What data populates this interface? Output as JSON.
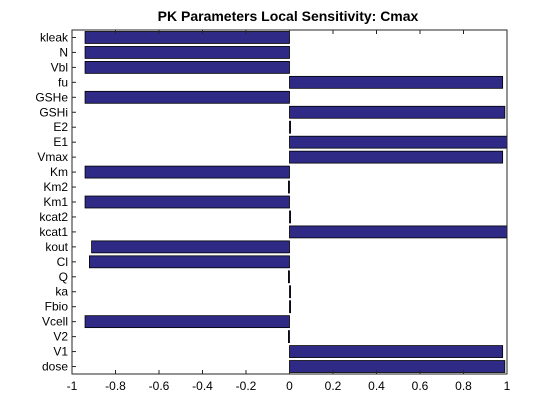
{
  "chart_data": {
    "type": "bar",
    "orientation": "horizontal",
    "title": "PK Parameters Local Sensitivity: Cmax",
    "xlabel": "",
    "ylabel": "",
    "xlim": [
      -1,
      1
    ],
    "xticks": [
      "-1",
      "-0.8",
      "-0.6",
      "-0.4",
      "-0.2",
      "0",
      "0.2",
      "0.4",
      "0.6",
      "0.8",
      "1"
    ],
    "categories": [
      "kleak",
      "N",
      "Vbl",
      "fu",
      "GSHe",
      "GSHi",
      "E2",
      "E1",
      "Vmax",
      "Km",
      "Km2",
      "Km1",
      "kcat2",
      "kcat1",
      "kout",
      "Cl",
      "Q",
      "ka",
      "Fbio",
      "Vcell",
      "V2",
      "V1",
      "dose"
    ],
    "values": [
      -0.94,
      -0.94,
      -0.94,
      0.98,
      -0.94,
      0.99,
      0.005,
      1.0,
      0.98,
      -0.94,
      -0.005,
      -0.94,
      0.005,
      1.0,
      -0.91,
      -0.92,
      -0.005,
      0.005,
      0.005,
      -0.94,
      -0.005,
      0.98,
      0.99
    ],
    "bar_color": "#2e2a85",
    "grid": false,
    "legend": "none"
  }
}
